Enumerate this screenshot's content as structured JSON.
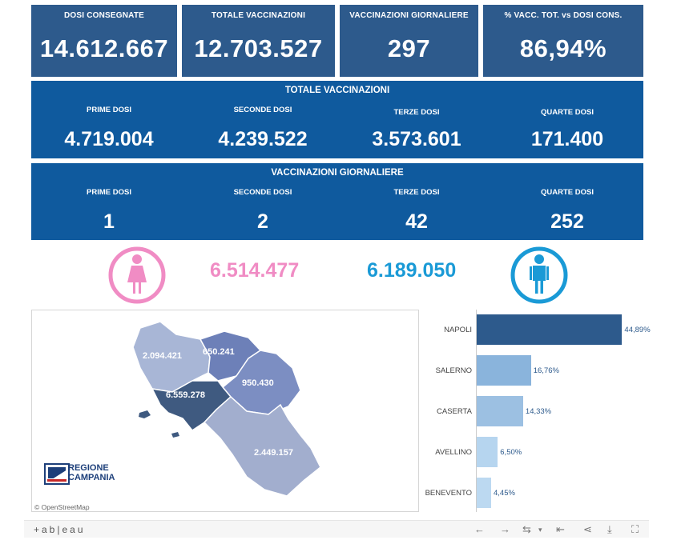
{
  "kpis": [
    {
      "title": "DOSI  CONSEGNATE",
      "value": "14.612.667"
    },
    {
      "title": "TOTALE VACCINAZIONI",
      "value": "12.703.527"
    },
    {
      "title": "VACCINAZIONI GIORNALIERE",
      "value": "297"
    },
    {
      "title": "% VACC. TOT. vs DOSI CONS.",
      "value": "86,94%"
    }
  ],
  "totale": {
    "header": "TOTALE VACCINAZIONI",
    "cols": [
      {
        "label": "PRIME DOSI",
        "value": "4.719.004"
      },
      {
        "label": "SECONDE DOSI",
        "value": "4.239.522"
      },
      {
        "label": "TERZE DOSI",
        "value": "3.573.601"
      },
      {
        "label": "QUARTE DOSI",
        "value": "171.400"
      }
    ]
  },
  "giornaliere": {
    "header": "VACCINAZIONI GIORNALIERE",
    "cols": [
      {
        "label": "PRIME DOSI",
        "value": "1"
      },
      {
        "label": "SECONDE DOSI",
        "value": "2"
      },
      {
        "label": "TERZE DOSI",
        "value": "42"
      },
      {
        "label": "QUARTE DOSI",
        "value": "252"
      }
    ]
  },
  "gender": {
    "female_value": "6.514.477",
    "male_value": "6.189.050",
    "female_color": "#f08cc4",
    "male_color": "#1a9ad6"
  },
  "map": {
    "regions": [
      {
        "name": "caserta",
        "value": "2.094.421"
      },
      {
        "name": "benevento",
        "value": "650.241"
      },
      {
        "name": "avellino",
        "value": "950.430"
      },
      {
        "name": "napoli",
        "value": "6.559.278"
      },
      {
        "name": "salerno",
        "value": "2.449.157"
      }
    ],
    "logo_line1": "REGIONE",
    "logo_line2": "CAMPANIA",
    "attribution": "© OpenStreetMap"
  },
  "chart_data": {
    "type": "bar",
    "orientation": "horizontal",
    "categories": [
      "NAPOLI",
      "SALERNO",
      "CASERTA",
      "AVELLINO",
      "BENEVENTO"
    ],
    "values": [
      44.89,
      16.76,
      14.33,
      6.5,
      4.45
    ],
    "value_labels": [
      "44,89%",
      "16,76%",
      "14,33%",
      "6,50%",
      "4,45%"
    ],
    "colors": [
      "#2d5a8c",
      "#8ab4dc",
      "#9cc0e2",
      "#b6d5ef",
      "#bcd9f1"
    ],
    "xlim": [
      0,
      48
    ]
  },
  "footer": {
    "brand": "+ab|eau"
  }
}
